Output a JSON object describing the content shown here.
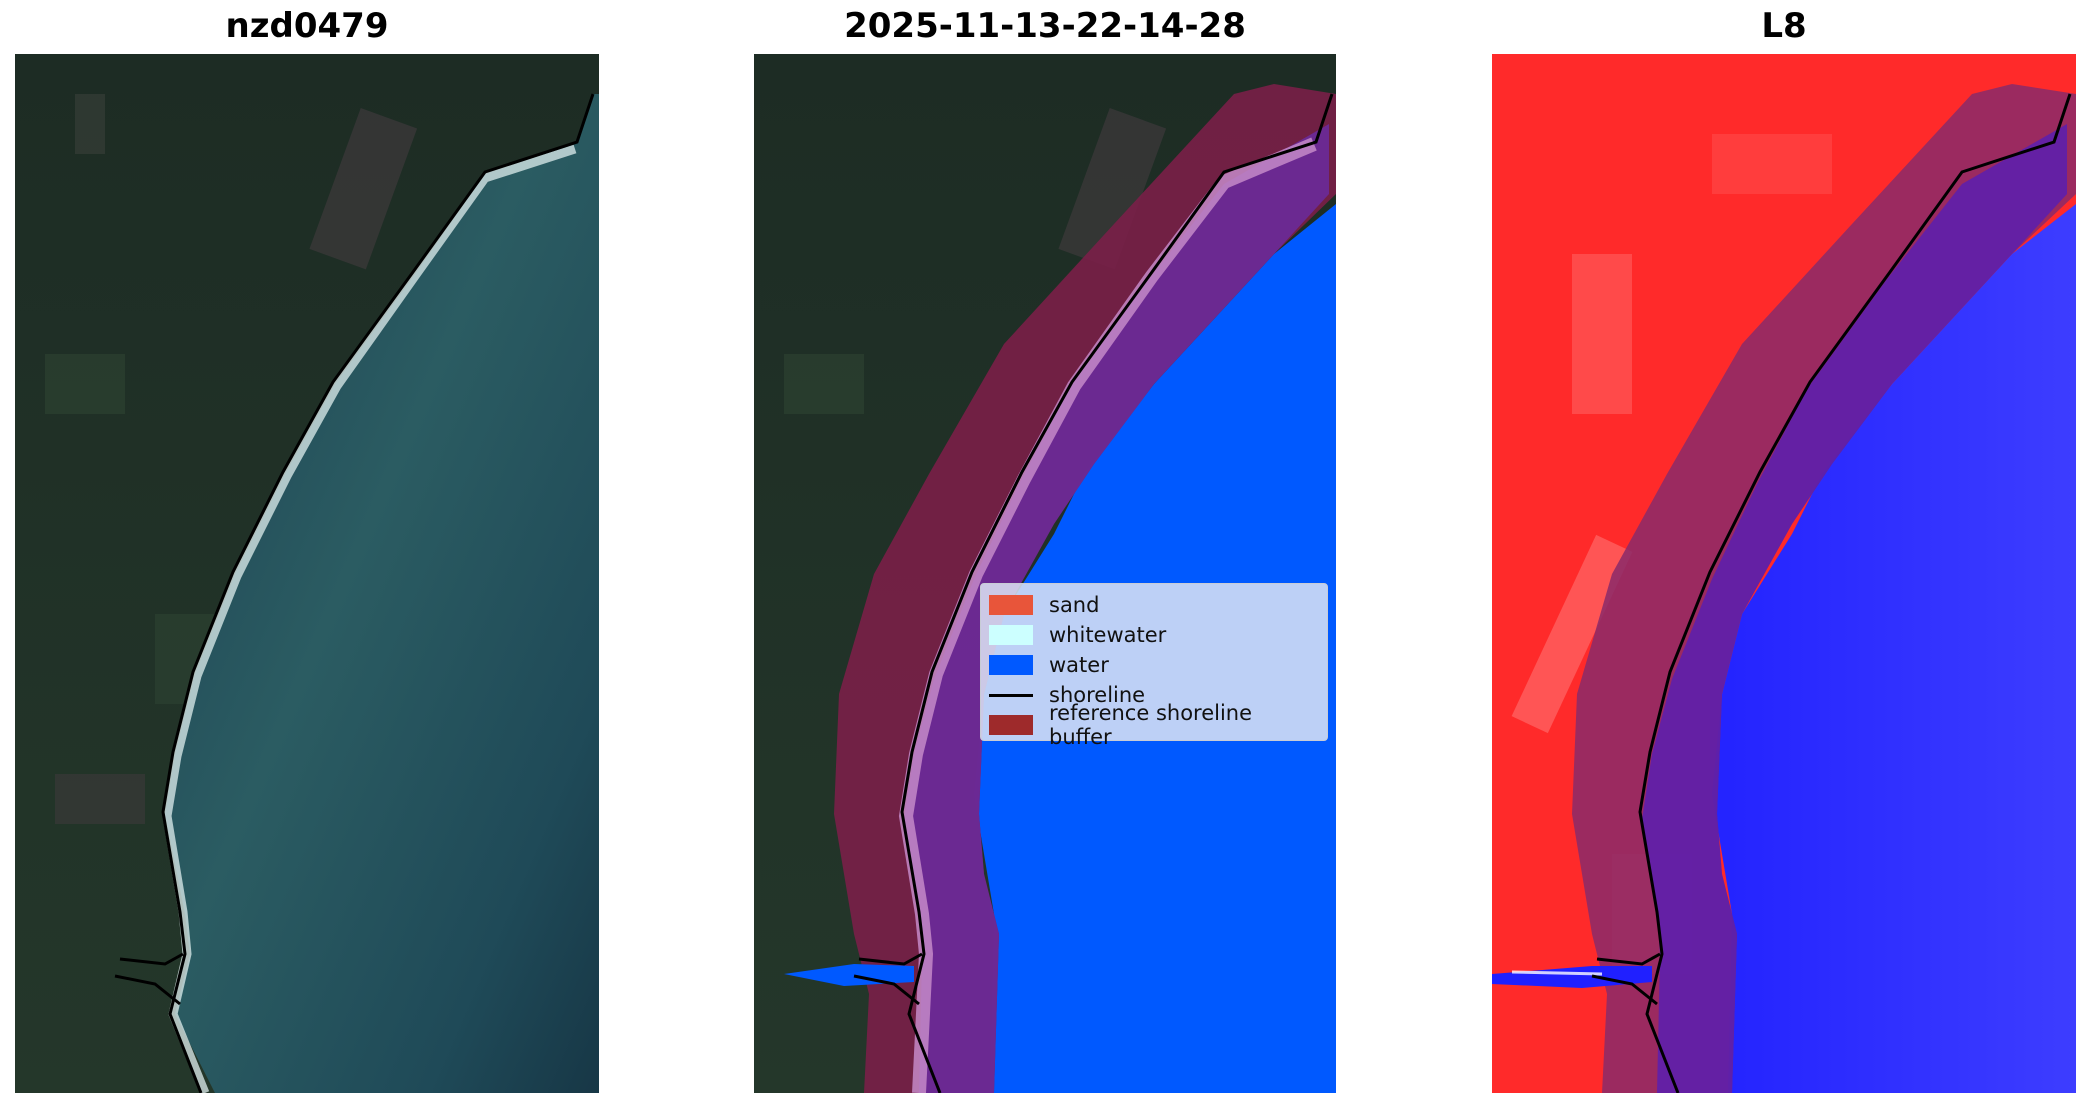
{
  "panels": [
    {
      "title": "nzd0479"
    },
    {
      "title": "2025-11-13-22-14-28"
    },
    {
      "title": "L8"
    }
  ],
  "legend": {
    "entries": [
      {
        "label": "sand",
        "color": "#e8553a"
      },
      {
        "label": "whitewater",
        "color": "#ccffff"
      },
      {
        "label": "water",
        "color": "#0059ff"
      },
      {
        "label": "shoreline",
        "color": "#000000"
      },
      {
        "label": "reference shoreline buffer",
        "color": "#9e2a2b"
      }
    ]
  },
  "colors": {
    "land": "#1f3025",
    "ocean": "#1e4656",
    "surf": "#e6f0f0",
    "classified_water": "#0059ff",
    "buffer": "#7a1f48",
    "buffer_over_water": "#5a2a9a",
    "l8_land": "#ff2020",
    "l8_water": "#1a1aff"
  }
}
